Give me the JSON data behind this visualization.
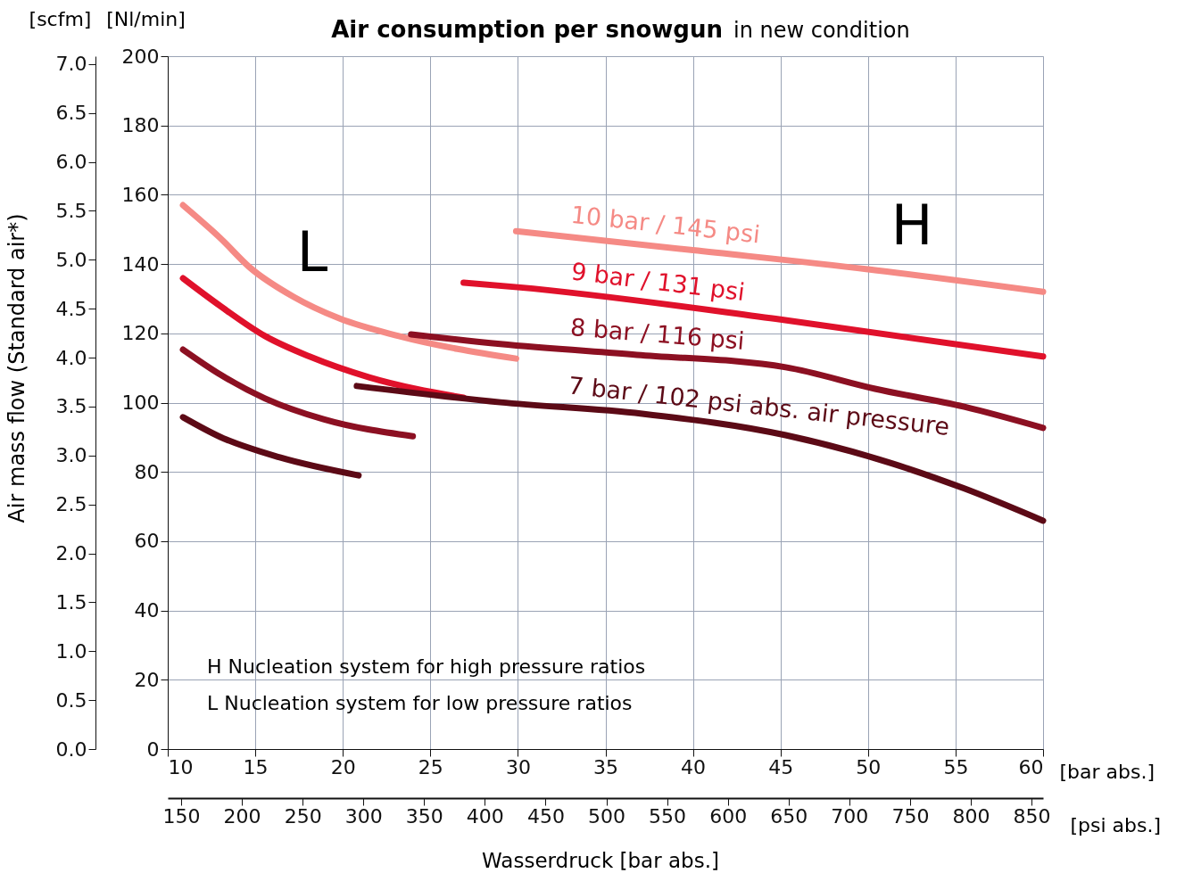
{
  "chart_data": {
    "type": "line",
    "title": "Air consumption per snowgun",
    "subtitle": "in new condition",
    "xlabel": "[bar abs.]",
    "x2label": "[psi abs.]",
    "ylabel": "[Nl/min]",
    "y2label": "[scfm]",
    "annotations": [
      "L",
      "H",
      "H  Nucleation system for high pressure ratios",
      "L  Nucleation system for low pressure ratios",
      "Wasserdruck [bar abs.]",
      "Air mass flow (Standard air*)"
    ],
    "series": [
      {
        "name": "10 bar / 145 psi",
        "color": "#f58a85",
        "x": [
          29.9,
          40,
          50,
          60
        ],
        "values": [
          149.5,
          144,
          138.5,
          132
        ]
      },
      {
        "color": "#f58a85",
        "x": [
          10.87,
          13.0,
          14.69,
          17.2,
          19.8,
          23.2,
          29.9
        ],
        "values": [
          157,
          147.5,
          139,
          130.5,
          124.3,
          119.2,
          112.7
        ]
      },
      {
        "name": "9 bar / 131 psi",
        "color": "#e0112b",
        "x": [
          26.9,
          30,
          45,
          60
        ],
        "values": [
          134.6,
          133.3,
          124,
          113.3
        ]
      },
      {
        "color": "#e0112b",
        "x": [
          10.87,
          13.0,
          15.56,
          18.1,
          21.5,
          26.9
        ],
        "values": [
          135.9,
          127.9,
          119.2,
          113.3,
          107.3,
          101.4
        ]
      },
      {
        "name": "8 bar / 116 psi",
        "color": "#8c1022",
        "x": [
          23.9,
          29,
          36.8,
          45.3,
          50.4,
          55.5,
          60
        ],
        "values": [
          119.7,
          116.9,
          113.8,
          110.2,
          104,
          98.8,
          92.7
        ]
      },
      {
        "color": "#8c1022",
        "x": [
          10.87,
          13.0,
          15.56,
          18.9,
          24.0
        ],
        "values": [
          115.3,
          108.1,
          101.2,
          95.2,
          90.3
        ]
      },
      {
        "name": "7 bar / 102 psi abs. air pressure",
        "color": "#5c0a16",
        "x": [
          20.8,
          29,
          37.1,
          45.3,
          51.4,
          55.5,
          60
        ],
        "values": [
          104.8,
          100.1,
          96.8,
          90.6,
          82.4,
          75.2,
          65.9
        ]
      },
      {
        "color": "#5c0a16",
        "x": [
          10.87,
          13.0,
          16.4,
          20.9
        ],
        "values": [
          95.8,
          90.1,
          84.2,
          79.0
        ]
      }
    ],
    "xlim": [
      10,
      60
    ],
    "xticks": [
      10,
      15,
      20,
      25,
      30,
      35,
      40,
      45,
      50,
      55,
      60
    ],
    "ylim": [
      0,
      200
    ],
    "yticks": [
      0,
      20,
      40,
      60,
      80,
      100,
      120,
      140,
      160,
      180,
      200
    ],
    "x2lim": [
      139,
      859.5
    ],
    "x2ticks": [
      150,
      200,
      250,
      300,
      350,
      400,
      450,
      500,
      550,
      600,
      650,
      700,
      750,
      800,
      850
    ],
    "y2lim": [
      0,
      7.08
    ],
    "y2ticks": [
      {
        "value": 0,
        "label": "0.0"
      },
      {
        "value": 0.5,
        "label": "0.5"
      },
      {
        "value": 1,
        "label": "1.0"
      },
      {
        "value": 1.5,
        "label": "1.5"
      },
      {
        "value": 2,
        "label": "2.0"
      },
      {
        "value": 2.5,
        "label": "2.5"
      },
      {
        "value": 3,
        "label": "3.0"
      },
      {
        "value": 3.5,
        "label": "3.5"
      },
      {
        "value": 4,
        "label": "4.0"
      },
      {
        "value": 4.5,
        "label": "4.5"
      },
      {
        "value": 5,
        "label": "5.0"
      },
      {
        "value": 5.5,
        "label": "5.5"
      },
      {
        "value": 6,
        "label": "6.0"
      },
      {
        "value": 6.5,
        "label": "6.5"
      },
      {
        "value": 7,
        "label": "7.0"
      }
    ],
    "grid": true,
    "line_style": "solid",
    "marker": "none"
  }
}
